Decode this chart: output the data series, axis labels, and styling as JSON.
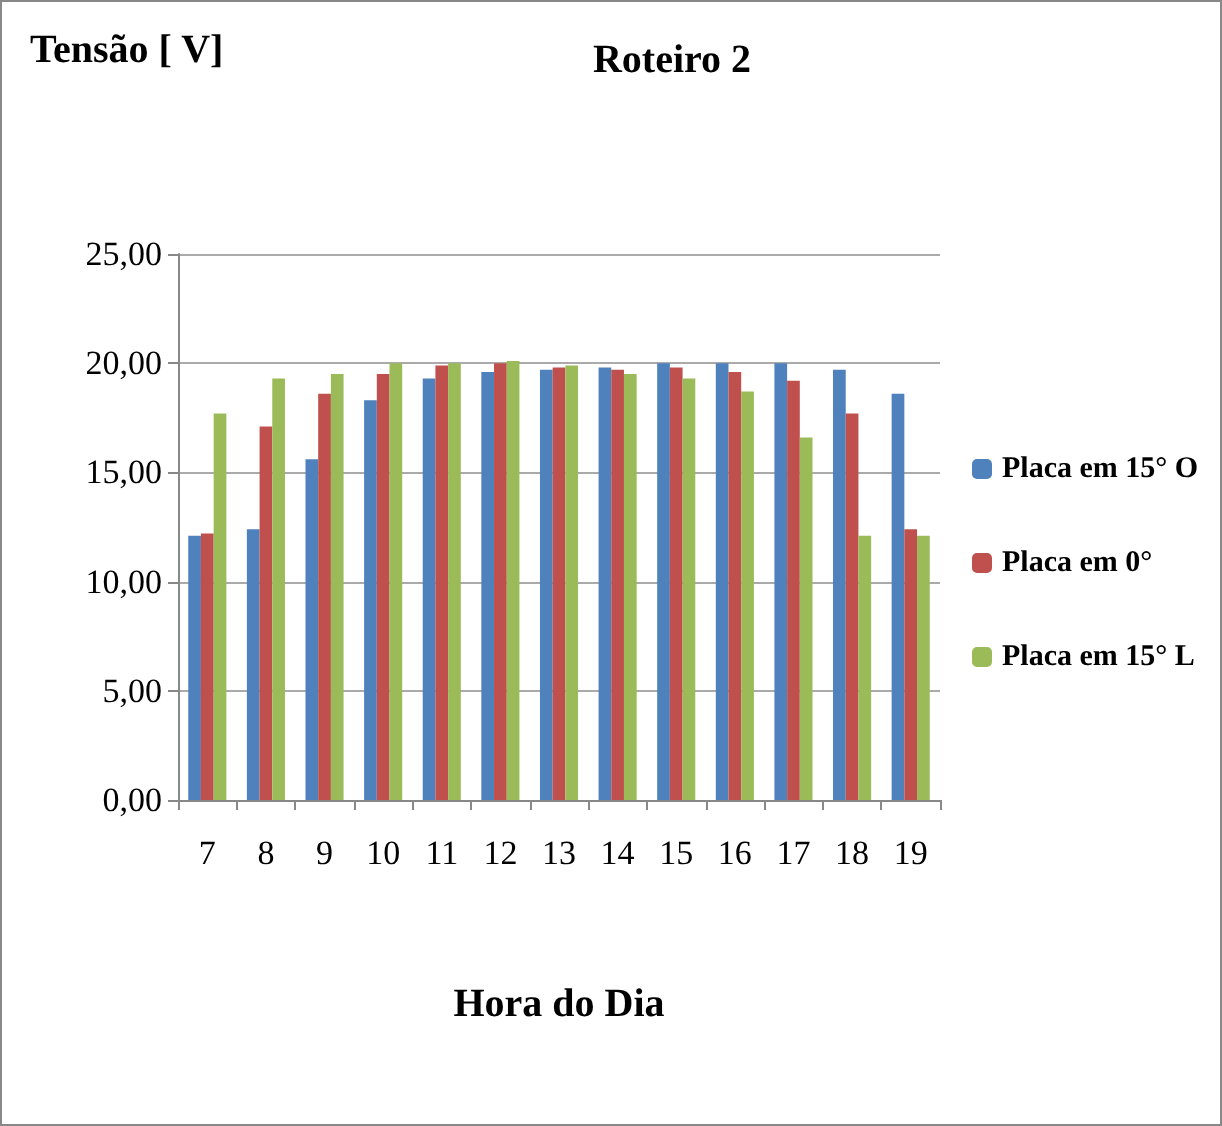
{
  "chart_data": {
    "type": "bar",
    "title": "Roteiro 2",
    "ylabel": "Tensão [ V]",
    "xlabel": "Hora do Dia",
    "categories": [
      "7",
      "8",
      "9",
      "10",
      "11",
      "12",
      "13",
      "14",
      "15",
      "16",
      "17",
      "18",
      "19"
    ],
    "series": [
      {
        "name": "Placa em 15° O",
        "color": "#4f81bd",
        "values": [
          12.1,
          12.4,
          15.6,
          18.3,
          19.3,
          19.6,
          19.7,
          19.8,
          20.0,
          20.0,
          20.0,
          19.7,
          18.6
        ]
      },
      {
        "name": "Placa em 0°",
        "color": "#c0504d",
        "values": [
          12.2,
          17.1,
          18.6,
          19.5,
          19.9,
          20.0,
          19.8,
          19.7,
          19.8,
          19.6,
          19.2,
          17.7,
          12.4
        ]
      },
      {
        "name": "Placa em 15° L",
        "color": "#9bbb59",
        "values": [
          17.7,
          19.3,
          19.5,
          20.0,
          20.0,
          20.1,
          19.9,
          19.5,
          19.3,
          18.7,
          16.6,
          12.1,
          12.1
        ]
      }
    ],
    "ylim": [
      0,
      25
    ],
    "yticks": [
      {
        "value": 0,
        "label": "0,00"
      },
      {
        "value": 5,
        "label": "5,00"
      },
      {
        "value": 10,
        "label": "10,00"
      },
      {
        "value": 15,
        "label": "15,00"
      },
      {
        "value": 20,
        "label": "20,00"
      },
      {
        "value": 25,
        "label": "25,00"
      }
    ],
    "grid": "y",
    "legend": "right"
  }
}
